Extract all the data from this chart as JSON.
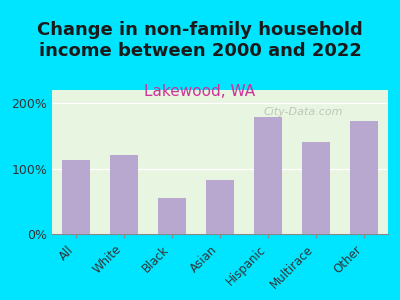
{
  "title": "Change in non-family household\nincome between 2000 and 2022",
  "subtitle": "Lakewood, WA",
  "categories": [
    "All",
    "White",
    "Black",
    "Asian",
    "Hispanic",
    "Multirace",
    "Other"
  ],
  "values": [
    113,
    120,
    55,
    83,
    178,
    140,
    172
  ],
  "bar_color": "#b8a8d0",
  "background_color": "#00e5ff",
  "plot_bg_top": "#e8f5e0",
  "plot_bg_bottom": "#f5f5dc",
  "title_color": "#1a1a1a",
  "subtitle_color": "#cc3399",
  "ylabel_ticks": [
    "0%",
    "100%",
    "200%"
  ],
  "ytick_vals": [
    0,
    100,
    200
  ],
  "ylim": [
    0,
    220
  ],
  "watermark": "City-Data.com",
  "title_fontsize": 13,
  "subtitle_fontsize": 11
}
